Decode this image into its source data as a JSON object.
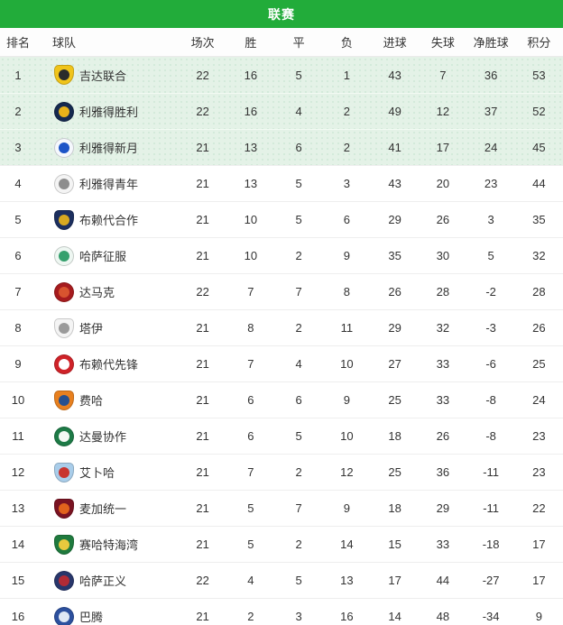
{
  "widget": {
    "title": "联赛"
  },
  "colors": {
    "header_bar": "#22ac3a",
    "highlight_row_bg": "#e4f2e7",
    "row_divider": "#eeeeee",
    "text": "#333333"
  },
  "table": {
    "columns": [
      {
        "key": "rank",
        "label": "排名"
      },
      {
        "key": "team",
        "label": "球队"
      },
      {
        "key": "played",
        "label": "场次"
      },
      {
        "key": "win",
        "label": "胜"
      },
      {
        "key": "draw",
        "label": "平"
      },
      {
        "key": "loss",
        "label": "负"
      },
      {
        "key": "goals_for",
        "label": "进球"
      },
      {
        "key": "goals_against",
        "label": "失球"
      },
      {
        "key": "goal_diff",
        "label": "净胜球"
      },
      {
        "key": "points",
        "label": "积分"
      }
    ],
    "rows": [
      {
        "rank": 1,
        "team": "吉达联合",
        "highlight": true,
        "logo": {
          "shape": "shield",
          "colors": [
            "#f0c41b",
            "#2b2b2b"
          ]
        },
        "stats": [
          22,
          16,
          5,
          1,
          43,
          7,
          36,
          53
        ]
      },
      {
        "rank": 2,
        "team": "利雅得胜利",
        "highlight": true,
        "logo": {
          "shape": "circle",
          "colors": [
            "#15294f",
            "#e8b21a"
          ]
        },
        "stats": [
          22,
          16,
          4,
          2,
          49,
          12,
          37,
          52
        ]
      },
      {
        "rank": 3,
        "team": "利雅得新月",
        "highlight": true,
        "logo": {
          "shape": "circle",
          "colors": [
            "#f5f8fd",
            "#1c54c7"
          ]
        },
        "stats": [
          21,
          13,
          6,
          2,
          41,
          17,
          24,
          45
        ]
      },
      {
        "rank": 4,
        "team": "利雅得青年",
        "highlight": false,
        "logo": {
          "shape": "circle",
          "colors": [
            "#f4f4f4",
            "#8d8d8d"
          ]
        },
        "stats": [
          21,
          13,
          5,
          3,
          43,
          20,
          23,
          44
        ]
      },
      {
        "rank": 5,
        "team": "布赖代合作",
        "highlight": false,
        "logo": {
          "shape": "shield",
          "colors": [
            "#1c2f5f",
            "#d8a921"
          ]
        },
        "stats": [
          21,
          10,
          5,
          6,
          29,
          26,
          3,
          35
        ]
      },
      {
        "rank": 6,
        "team": "哈萨征服",
        "highlight": false,
        "logo": {
          "shape": "circle",
          "colors": [
            "#eef7f2",
            "#35a06d"
          ]
        },
        "stats": [
          21,
          10,
          2,
          9,
          35,
          30,
          5,
          32
        ]
      },
      {
        "rank": 7,
        "team": "达马克",
        "highlight": false,
        "logo": {
          "shape": "circle",
          "colors": [
            "#a61b1e",
            "#d8542f"
          ]
        },
        "stats": [
          22,
          7,
          7,
          8,
          26,
          28,
          -2,
          28
        ]
      },
      {
        "rank": 8,
        "team": "塔伊",
        "highlight": false,
        "logo": {
          "shape": "shield",
          "colors": [
            "#f4f4f4",
            "#9a9a9a"
          ]
        },
        "stats": [
          21,
          8,
          2,
          11,
          29,
          32,
          -3,
          26
        ]
      },
      {
        "rank": 9,
        "team": "布赖代先锋",
        "highlight": false,
        "logo": {
          "shape": "circle",
          "colors": [
            "#cf2228",
            "#ffffff"
          ]
        },
        "stats": [
          21,
          7,
          4,
          10,
          27,
          33,
          -6,
          25
        ]
      },
      {
        "rank": 10,
        "team": "费哈",
        "highlight": false,
        "logo": {
          "shape": "shield",
          "colors": [
            "#e8801f",
            "#27508f"
          ]
        },
        "stats": [
          21,
          6,
          6,
          9,
          25,
          33,
          -8,
          24
        ]
      },
      {
        "rank": 11,
        "team": "达曼协作",
        "highlight": false,
        "logo": {
          "shape": "circle",
          "colors": [
            "#1d7a46",
            "#f3f8f4"
          ]
        },
        "stats": [
          21,
          6,
          5,
          10,
          18,
          26,
          -8,
          23
        ]
      },
      {
        "rank": 12,
        "team": "艾卜哈",
        "highlight": false,
        "logo": {
          "shape": "shield",
          "colors": [
            "#a9cdea",
            "#c8342f"
          ]
        },
        "stats": [
          21,
          7,
          2,
          12,
          25,
          36,
          -11,
          23
        ]
      },
      {
        "rank": 13,
        "team": "麦加统一",
        "highlight": false,
        "logo": {
          "shape": "shield",
          "colors": [
            "#7a1322",
            "#e2631c"
          ]
        },
        "stats": [
          21,
          5,
          7,
          9,
          18,
          29,
          -11,
          22
        ]
      },
      {
        "rank": 14,
        "team": "赛哈特海湾",
        "highlight": false,
        "logo": {
          "shape": "shield",
          "colors": [
            "#1f7a3e",
            "#e8c93e"
          ]
        },
        "stats": [
          21,
          5,
          2,
          14,
          15,
          33,
          -18,
          17
        ]
      },
      {
        "rank": 15,
        "team": "哈萨正义",
        "highlight": false,
        "logo": {
          "shape": "circle",
          "colors": [
            "#28366b",
            "#b32b35"
          ]
        },
        "stats": [
          22,
          4,
          5,
          13,
          17,
          44,
          -27,
          17
        ]
      },
      {
        "rank": 16,
        "team": "巴腾",
        "highlight": false,
        "logo": {
          "shape": "circle",
          "colors": [
            "#2c509e",
            "#dfe8f5"
          ]
        },
        "stats": [
          21,
          2,
          3,
          16,
          14,
          48,
          -34,
          9
        ]
      }
    ]
  }
}
